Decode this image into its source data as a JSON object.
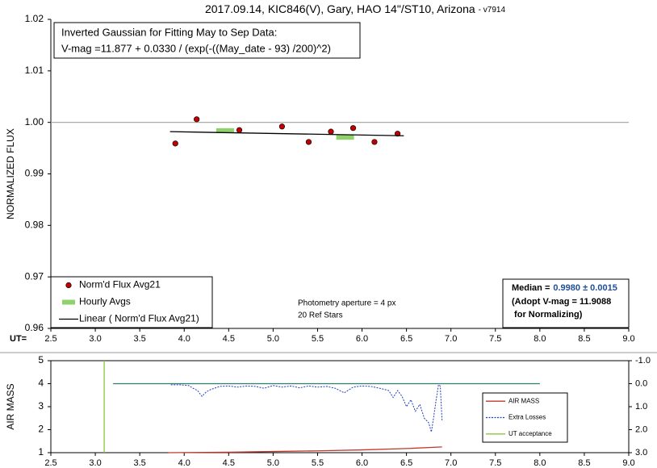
{
  "chart_data": [
    {
      "type": "scatter",
      "title": "2017.09.14, KIC846(V), Gary, HAO 14\"/ST10, Arizona",
      "subtitle": "- v7914",
      "ylabel": "NORMALIZED FLUX",
      "xlabel": "UT=",
      "xlim": [
        2.5,
        9.0
      ],
      "xticks": [
        2.5,
        {
          "value": 3,
          "label": "3.0"
        },
        3.5,
        {
          "value": 4,
          "label": "4.0"
        },
        4.5,
        {
          "value": 5,
          "label": "5.0"
        },
        5.5,
        {
          "value": 6,
          "label": "6.0"
        },
        6.5,
        {
          "value": 7,
          "label": "7.0"
        },
        7.5,
        {
          "value": 8,
          "label": "8.0"
        },
        8.5,
        {
          "value": 9,
          "label": "9.0"
        }
      ],
      "ylim": [
        0.96,
        1.02
      ],
      "yticks": [
        0.96,
        0.97,
        0.98,
        0.99,
        {
          "value": 1,
          "label": "1.00"
        },
        1.01,
        1.02
      ],
      "hlines": [
        {
          "value": 1,
          "color": "#a0a0a0"
        }
      ],
      "legend": "lower left",
      "series": [
        {
          "name": "Norm'd Flux Avg21",
          "type": "scatter",
          "color": "#c00000",
          "x": [
            3.9,
            4.14,
            4.62,
            5.1,
            5.4,
            5.65,
            5.9,
            6.14,
            6.4
          ],
          "values": [
            0.9959,
            1.0006,
            0.9985,
            0.9992,
            0.9962,
            0.9982,
            0.9989,
            0.9962,
            0.9978
          ]
        },
        {
          "name": "Hourly Avgs",
          "type": "bar",
          "color": "#8fd16a",
          "x": [
            4.46,
            5.81
          ],
          "values": [
            0.9984,
            0.9971
          ]
        },
        {
          "name": "Linear ( Norm'd Flux Avg21)",
          "type": "line",
          "color": "#000000",
          "x": [
            3.84,
            6.47
          ],
          "values": [
            0.9982,
            0.9974
          ]
        }
      ],
      "annotations": {
        "fit_box": [
          "Inverted Gaussian for Fitting May to Sep Data:",
          "V-mag =11.877 + 0.0330 / (exp(-((May_date - 93) /200)^2)"
        ],
        "photometry": [
          "Photometry aperture = 4 px",
          "20 Ref Stars"
        ],
        "median_box": {
          "label": "Median =",
          "value": "0.9980 ± 0.0015",
          "lines": [
            "(Adopt V-mag = 11.9088",
            " for Normalizing)"
          ]
        }
      }
    },
    {
      "type": "line",
      "ylabel": "AIR MASS",
      "xlim": [
        2.5,
        9.0
      ],
      "xticks": [
        2.5,
        {
          "value": 3,
          "label": "3.0"
        },
        3.5,
        {
          "value": 4,
          "label": "4.0"
        },
        4.5,
        {
          "value": 5,
          "label": "5.0"
        },
        5.5,
        {
          "value": 6,
          "label": "6.0"
        },
        6.5,
        {
          "value": 7,
          "label": "7.0"
        },
        7.5,
        {
          "value": 8,
          "label": "8.0"
        },
        8.5,
        {
          "value": 9,
          "label": "9.0"
        }
      ],
      "ylim": [
        1,
        5
      ],
      "yticks": [
        1,
        2,
        3,
        4,
        5
      ],
      "y2lim": [
        -1,
        3
      ],
      "y2_inverted": true,
      "y2ticks": [
        {
          "value": -1,
          "label": "-1.0"
        },
        {
          "value": 0,
          "label": "0.0"
        },
        {
          "value": 1,
          "label": "1.0"
        },
        {
          "value": 2,
          "label": "2.0"
        },
        {
          "value": 3,
          "label": "3.0"
        }
      ],
      "hlines": [
        {
          "value": 0,
          "axis": "y2",
          "x": [
            3.2,
            8.0
          ],
          "color": "#2e7d6b"
        }
      ],
      "legend": "lower right",
      "series": [
        {
          "name": "AIR MASS",
          "type": "line",
          "color": "#c0392b",
          "x": [
            3.82,
            4.5,
            5.0,
            5.5,
            6.0,
            6.5,
            6.9
          ],
          "values": [
            1.0,
            1.02,
            1.05,
            1.08,
            1.12,
            1.18,
            1.25
          ]
        },
        {
          "name": "Extra Losses",
          "type": "line",
          "axis": "y2",
          "dashed": true,
          "color": "#1f3fbf",
          "x": [
            3.85,
            3.95,
            4.05,
            4.1,
            4.15,
            4.2,
            4.25,
            4.3,
            4.4,
            4.5,
            4.6,
            4.7,
            4.8,
            4.9,
            5.0,
            5.1,
            5.2,
            5.3,
            5.4,
            5.5,
            5.6,
            5.7,
            5.8,
            5.9,
            6.0,
            6.1,
            6.2,
            6.3,
            6.35,
            6.4,
            6.45,
            6.5,
            6.55,
            6.6,
            6.65,
            6.7,
            6.75,
            6.78,
            6.8,
            6.83,
            6.86,
            6.88,
            6.9
          ],
          "values": [
            0.05,
            0.05,
            0.08,
            0.2,
            0.3,
            0.55,
            0.35,
            0.25,
            0.12,
            0.1,
            0.15,
            0.1,
            0.12,
            0.2,
            0.08,
            0.15,
            0.1,
            0.18,
            0.1,
            0.15,
            0.12,
            0.2,
            0.4,
            0.15,
            0.1,
            0.12,
            0.2,
            0.3,
            0.6,
            0.3,
            0.55,
            1.0,
            0.7,
            1.2,
            0.9,
            1.5,
            1.7,
            2.1,
            1.6,
            0.8,
            0.05,
            0.1,
            1.6
          ]
        },
        {
          "name": "UT acceptance",
          "type": "line",
          "color": "#8cc63f",
          "x": [
            3.1,
            3.1
          ],
          "values": [
            1,
            5
          ]
        }
      ]
    }
  ]
}
